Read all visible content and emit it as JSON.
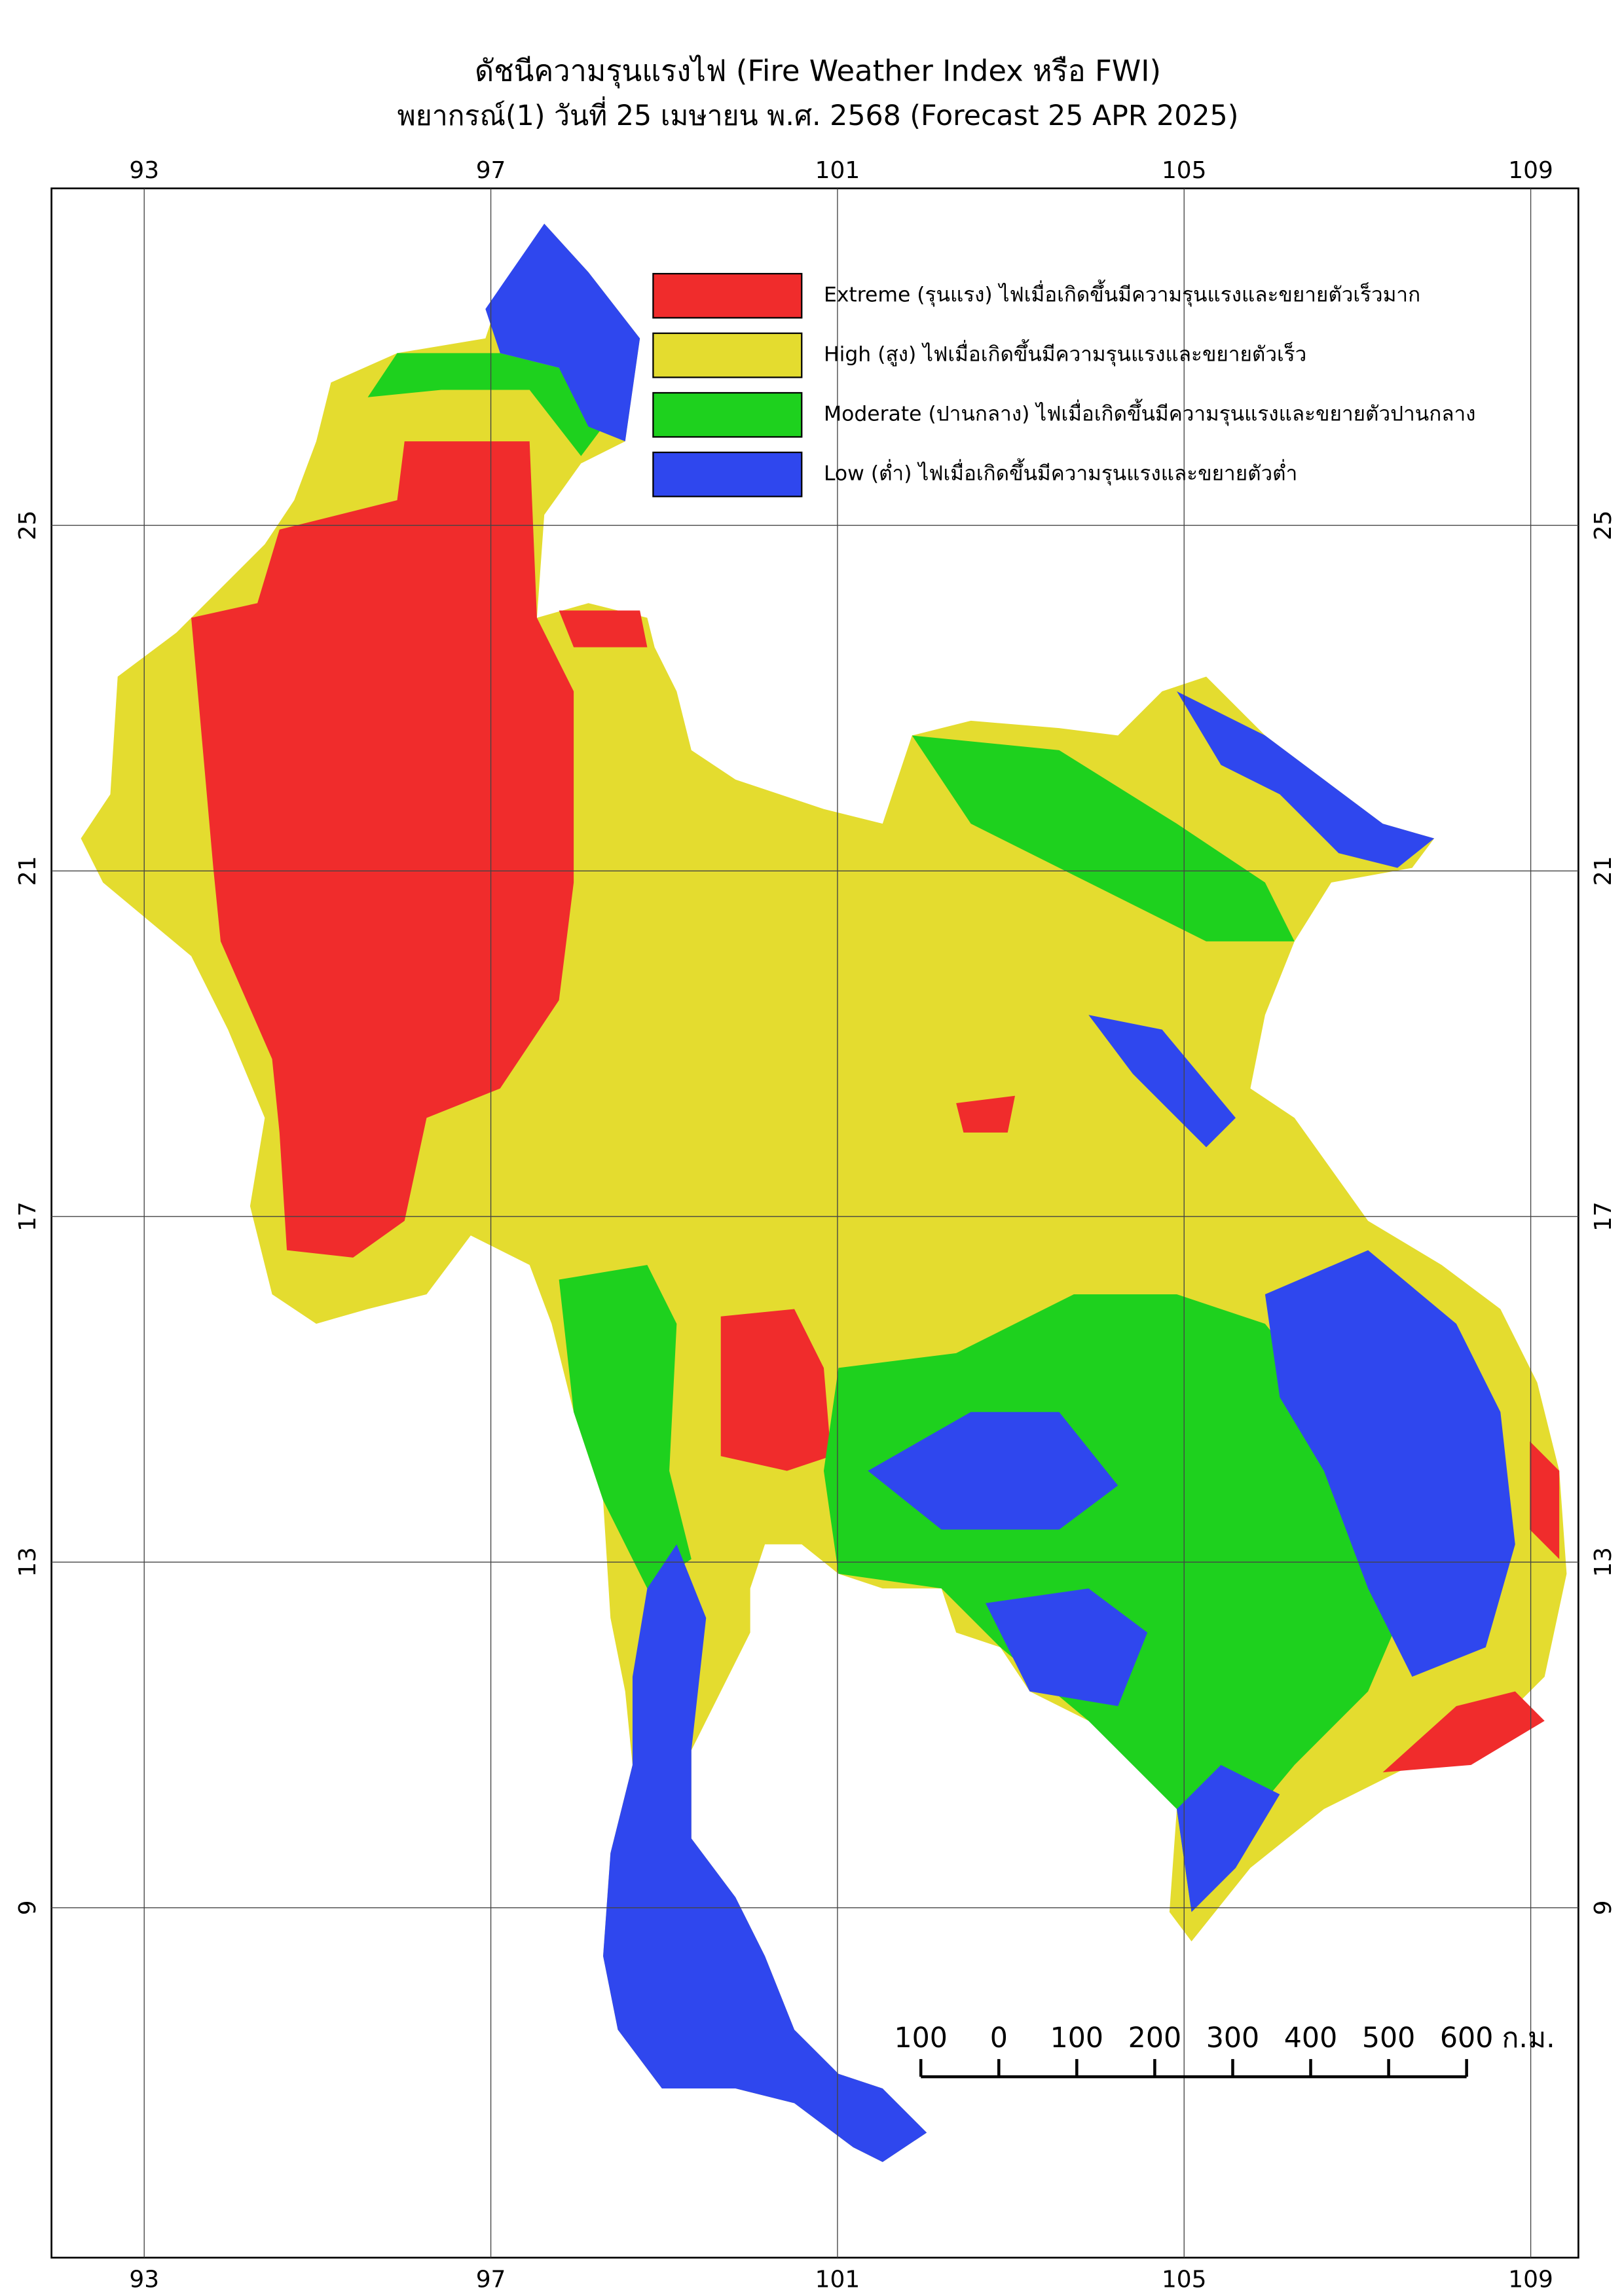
{
  "title": "ดัชนีความรุนแรงไฟ (Fire Weather Index หรือ FWI)",
  "subtitle": "พยากรณ์(1) วันที่ 25 เมษายน พ.ศ. 2568 (Forecast 25 APR 2025)",
  "legend": [
    {
      "label": "Extreme (รุนแรง) ไฟเมื่อเกิดขึ้นมีความรุนแรงและขยายตัวเร็วมาก",
      "color": "#f02c2c"
    },
    {
      "label": "High (สูง) ไฟเมื่อเกิดขึ้นมีความรุนแรงและขยายตัวเร็ว",
      "color": "#e4dc2f"
    },
    {
      "label": "Moderate (ปานกลาง) ไฟเมื่อเกิดขึ้นมีความรุนแรงและขยายตัวปานกลาง",
      "color": "#1ed11e"
    },
    {
      "label": "Low (ต่ำ) ไฟเมื่อเกิดขึ้นมีความรุนแรงและขยายตัวต่ำ",
      "color": "#2f47ee"
    }
  ],
  "xlim": [
    91.93,
    109.55
  ],
  "ylim": [
    4.95,
    28.9
  ],
  "lon_ticks": [
    93,
    97,
    101,
    105,
    109
  ],
  "lat_ticks": [
    25,
    21,
    17,
    13,
    9
  ],
  "scale_bar": {
    "ticks": [
      {
        "value": -100,
        "label": "100"
      },
      0,
      100,
      200,
      300,
      400,
      500,
      600
    ],
    "unit": "ก.ม."
  }
}
